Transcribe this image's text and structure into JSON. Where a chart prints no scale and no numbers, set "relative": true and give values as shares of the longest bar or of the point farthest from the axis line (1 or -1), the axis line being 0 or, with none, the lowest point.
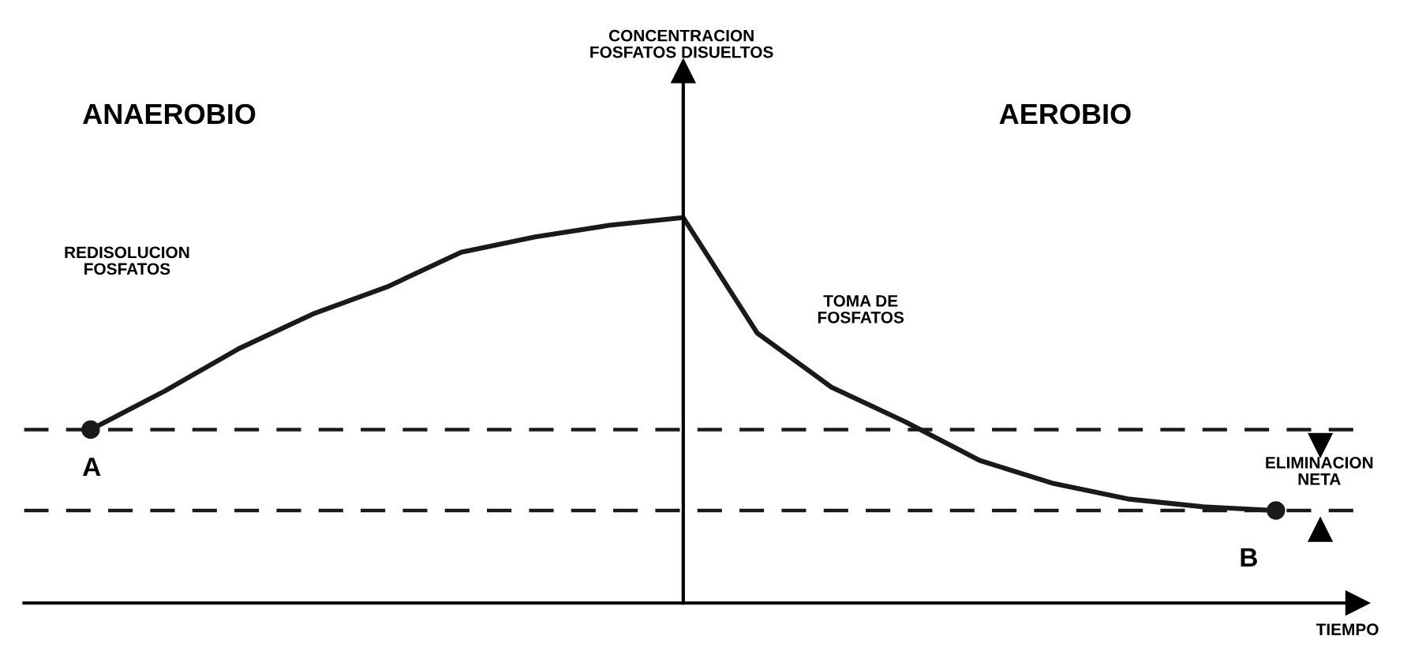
{
  "chart_data": {
    "type": "line",
    "relative": true,
    "xlabel": "TIEMPO",
    "categories": [
      null,
      null,
      null,
      null,
      null,
      null,
      null,
      null,
      null,
      null,
      null,
      null,
      null,
      null,
      null,
      null,
      null
    ],
    "series": [
      {
        "color": "#1a1a1a",
        "values": [
          0.45,
          0.55,
          0.66,
          0.75,
          0.82,
          0.91,
          0.95,
          0.98,
          1.0,
          0.7,
          0.56,
          0.47,
          0.37,
          0.31,
          0.27,
          0.25,
          0.24
        ]
      }
    ],
    "ref_lines": [
      {
        "axis": "y",
        "value": 0.45,
        "line_style": "dashed",
        "color": "#1a1a1a"
      },
      {
        "axis": "y",
        "value": 0.24,
        "line_style": "dashed",
        "color": "#1a1a1a"
      }
    ],
    "annotations": [
      "ANAEROBIO",
      "AEROBIO",
      "REDISOLUCION\nFOSFATOS",
      "TOMA DE\nFOSFATOS",
      "ELIMINACION\nNETA",
      "A",
      "B",
      "CONCENTRACION\nFOSFATOS DISUELTOS"
    ],
    "line_style": "solid"
  }
}
